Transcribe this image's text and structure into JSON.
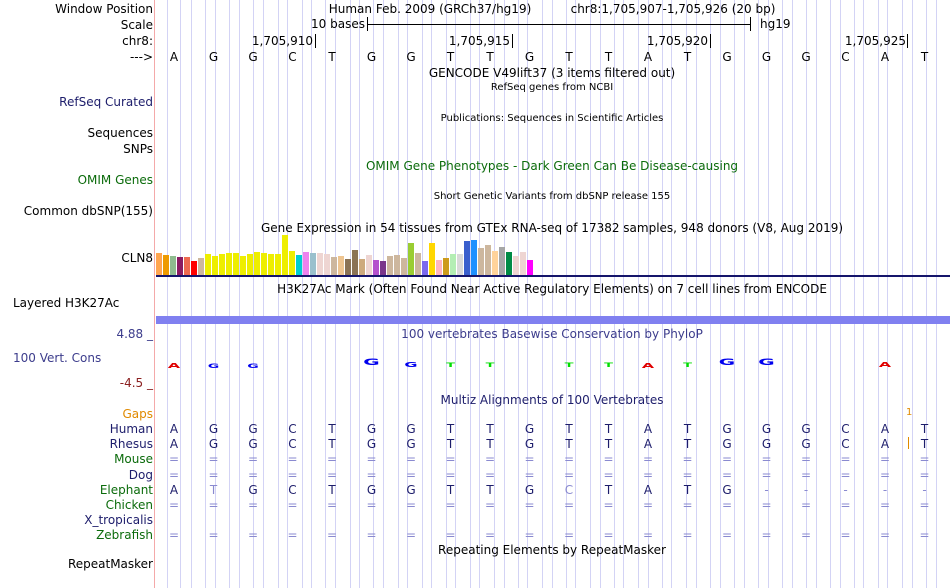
{
  "labels": {
    "window_position": "Window Position",
    "scale": "Scale",
    "chr": "chr8:",
    "arrow": "--->",
    "refseq": "RefSeq Curated",
    "sequences": "Sequences",
    "snps": "SNPs",
    "omim": "OMIM Genes",
    "dbsnp": "Common dbSNP(155)",
    "cln8": "CLN8",
    "h3k27ac": "Layered H3K27Ac",
    "cons_max": "4.88 _",
    "cons_label": "100 Vert. Cons",
    "cons_min": "-4.5 _",
    "gaps": "Gaps",
    "species": [
      {
        "name": "Human",
        "color": "#1d1d6b"
      },
      {
        "name": "Rhesus",
        "color": "#1d1d6b"
      },
      {
        "name": "Mouse",
        "color": "#0b6b0b"
      },
      {
        "name": "Dog",
        "color": "#1d1d6b"
      },
      {
        "name": "Elephant",
        "color": "#0b6b0b"
      },
      {
        "name": "Chicken",
        "color": "#0b6b0b"
      },
      {
        "name": "X_tropicalis",
        "color": "#1d1d6b"
      },
      {
        "name": "Zebrafish",
        "color": "#0b6b0b"
      }
    ],
    "repeatmasker": "RepeatMasker"
  },
  "header": {
    "assembly": "Human Feb. 2009 (GRCh37/hg19)",
    "position": "chr8:1,705,907-1,705,926 (20 bp)",
    "scale_text": "10 bases",
    "scale_db": "hg19",
    "coords": [
      "1,705,910",
      "1,705,915",
      "1,705,920",
      "1,705,925"
    ]
  },
  "sequence": [
    "A",
    "G",
    "G",
    "C",
    "T",
    "G",
    "G",
    "T",
    "T",
    "G",
    "T",
    "T",
    "A",
    "T",
    "G",
    "G",
    "G",
    "C",
    "A",
    "T"
  ],
  "tracks": {
    "gencode": "GENCODE V49lift37 (3 items filtered out)",
    "refseq_sub": "RefSeq genes from NCBI",
    "publications": "Publications: Sequences in Scientific Articles",
    "omim_title": "OMIM Gene Phenotypes - Dark Green Can Be Disease-causing",
    "dbsnp_title": "Short Genetic Variants from dbSNP release 155",
    "gtex_title": "Gene Expression in 54 tissues from GTEx RNA-seq of 17382 samples, 948 donors (V8, Aug 2019)",
    "h3k_title": "H3K27Ac Mark (Often Found Near Active Regulatory Elements) on 7 cell lines from ENCODE",
    "cons_title": "100 vertebrates Basewise Conservation by PhyloP",
    "multiz_title": "Multiz Alignments of 100 Vertebrates",
    "repeat_title": "Repeating Elements by RepeatMasker"
  },
  "gtex_bars": [
    {
      "v": 0.55,
      "c": "#ffa54f"
    },
    {
      "v": 0.5,
      "c": "#ee9a00"
    },
    {
      "v": 0.47,
      "c": "#8fbc8f"
    },
    {
      "v": 0.45,
      "c": "#8b1c62"
    },
    {
      "v": 0.45,
      "c": "#ee6a50"
    },
    {
      "v": 0.35,
      "c": "#ff0000"
    },
    {
      "v": 0.42,
      "c": "#cdb79e"
    },
    {
      "v": 0.52,
      "c": "#eeee00"
    },
    {
      "v": 0.48,
      "c": "#eeee00"
    },
    {
      "v": 0.52,
      "c": "#eeee00"
    },
    {
      "v": 0.55,
      "c": "#eeee00"
    },
    {
      "v": 0.55,
      "c": "#eeee00"
    },
    {
      "v": 0.48,
      "c": "#eeee00"
    },
    {
      "v": 0.53,
      "c": "#eeee00"
    },
    {
      "v": 0.58,
      "c": "#eeee00"
    },
    {
      "v": 0.55,
      "c": "#eeee00"
    },
    {
      "v": 0.53,
      "c": "#eeee00"
    },
    {
      "v": 0.53,
      "c": "#eeee00"
    },
    {
      "v": 1.0,
      "c": "#eeee00"
    },
    {
      "v": 0.6,
      "c": "#eeee00"
    },
    {
      "v": 0.5,
      "c": "#00ced1"
    },
    {
      "v": 0.58,
      "c": "#ee82ee"
    },
    {
      "v": 0.54,
      "c": "#9ac0cd"
    },
    {
      "v": 0.56,
      "c": "#eed5d2"
    },
    {
      "v": 0.52,
      "c": "#eed5d2"
    },
    {
      "v": 0.44,
      "c": "#cdb79e"
    },
    {
      "v": 0.48,
      "c": "#eec591"
    },
    {
      "v": 0.4,
      "c": "#8b7355"
    },
    {
      "v": 0.63,
      "c": "#8b7355"
    },
    {
      "v": 0.4,
      "c": "#cdaa7d"
    },
    {
      "v": 0.5,
      "c": "#eed5d2"
    },
    {
      "v": 0.37,
      "c": "#b452cd"
    },
    {
      "v": 0.35,
      "c": "#7a378b"
    },
    {
      "v": 0.47,
      "c": "#cdb79e"
    },
    {
      "v": 0.5,
      "c": "#cdb79e"
    },
    {
      "v": 0.42,
      "c": "#cdb79e"
    },
    {
      "v": 0.8,
      "c": "#9acd32"
    },
    {
      "v": 0.55,
      "c": "#cdb79e"
    },
    {
      "v": 0.35,
      "c": "#7b68ee"
    },
    {
      "v": 0.8,
      "c": "#ffd700"
    },
    {
      "v": 0.38,
      "c": "#ffb6c1"
    },
    {
      "v": 0.43,
      "c": "#cd9b1d"
    },
    {
      "v": 0.52,
      "c": "#b4eeb4"
    },
    {
      "v": 0.52,
      "c": "#d9d9d9"
    },
    {
      "v": 0.85,
      "c": "#3a5fcd"
    },
    {
      "v": 0.88,
      "c": "#1e90ff"
    },
    {
      "v": 0.68,
      "c": "#cdb79e"
    },
    {
      "v": 0.76,
      "c": "#cdb79e"
    },
    {
      "v": 0.6,
      "c": "#ffd39b"
    },
    {
      "v": 0.7,
      "c": "#a6a6a6"
    },
    {
      "v": 0.58,
      "c": "#008b45"
    },
    {
      "v": 0.47,
      "c": "#eed5d2"
    },
    {
      "v": 0.58,
      "c": "#eed5d2"
    },
    {
      "v": 0.37,
      "c": "#ff00ff"
    }
  ],
  "conservation": [
    {
      "b": "A",
      "c": "#e00000",
      "dir": "down"
    },
    {
      "b": "G",
      "c": "#0000ee",
      "dir": "down"
    },
    {
      "b": "G",
      "c": "#0000ee",
      "dir": "down"
    },
    {
      "b": "",
      "c": "",
      "dir": ""
    },
    {
      "b": "",
      "c": "",
      "dir": ""
    },
    {
      "b": "G",
      "c": "#0000ee",
      "dir": "up"
    },
    {
      "b": "G",
      "c": "#0000ee",
      "dir": "up"
    },
    {
      "b": "T",
      "c": "#00dd00",
      "dir": "up"
    },
    {
      "b": "T",
      "c": "#00dd00",
      "dir": "up"
    },
    {
      "b": "",
      "c": "",
      "dir": ""
    },
    {
      "b": "T",
      "c": "#00dd00",
      "dir": "up"
    },
    {
      "b": "T",
      "c": "#00dd00",
      "dir": "up"
    },
    {
      "b": "A",
      "c": "#e00000",
      "dir": "down"
    },
    {
      "b": "T",
      "c": "#00dd00",
      "dir": "up"
    },
    {
      "b": "G",
      "c": "#0000ee",
      "dir": "up"
    },
    {
      "b": "G",
      "c": "#0000ee",
      "dir": "up"
    },
    {
      "b": "",
      "c": "",
      "dir": ""
    },
    {
      "b": "",
      "c": "",
      "dir": ""
    },
    {
      "b": "A",
      "c": "#e00000",
      "dir": "up"
    },
    {
      "b": "",
      "c": "",
      "dir": ""
    }
  ],
  "alignment": {
    "gaps_marker": "1",
    "rows": [
      [
        "A",
        "G",
        "G",
        "C",
        "T",
        "G",
        "G",
        "T",
        "T",
        "G",
        "T",
        "T",
        "A",
        "T",
        "G",
        "G",
        "G",
        "C",
        "A",
        "T"
      ],
      [
        "A",
        "G",
        "G",
        "C",
        "T",
        "G",
        "G",
        "T",
        "T",
        "G",
        "T",
        "T",
        "A",
        "T",
        "G",
        "G",
        "G",
        "C",
        "A",
        "T"
      ],
      [
        "=",
        "=",
        "=",
        "=",
        "=",
        "=",
        "=",
        "=",
        "=",
        "=",
        "=",
        "=",
        "=",
        "=",
        "=",
        "=",
        "=",
        "=",
        "=",
        "="
      ],
      [
        "=",
        "=",
        "=",
        "=",
        "=",
        "=",
        "=",
        "=",
        "=",
        "=",
        "=",
        "=",
        "=",
        "=",
        "=",
        "=",
        "=",
        "=",
        "=",
        "="
      ],
      [
        "A",
        "T",
        "G",
        "C",
        "T",
        "G",
        "G",
        "T",
        "T",
        "G",
        "C",
        "T",
        "A",
        "T",
        "G",
        "-",
        "-",
        "-",
        "-",
        "-"
      ],
      [
        "=",
        "=",
        "=",
        "=",
        "=",
        "=",
        "=",
        "=",
        "=",
        "=",
        "=",
        "=",
        "=",
        "=",
        "=",
        "=",
        "=",
        "=",
        "=",
        "="
      ],
      [
        "",
        "",
        "",
        "",
        "",
        "",
        "",
        "",
        "",
        "",
        "",
        "",
        "",
        "",
        "",
        "",
        "",
        "",
        "",
        ""
      ],
      [
        "=",
        "=",
        "=",
        "=",
        "=",
        "=",
        "=",
        "=",
        "=",
        "=",
        "=",
        "=",
        "=",
        "=",
        "=",
        "=",
        "=",
        "=",
        "=",
        "="
      ]
    ]
  }
}
